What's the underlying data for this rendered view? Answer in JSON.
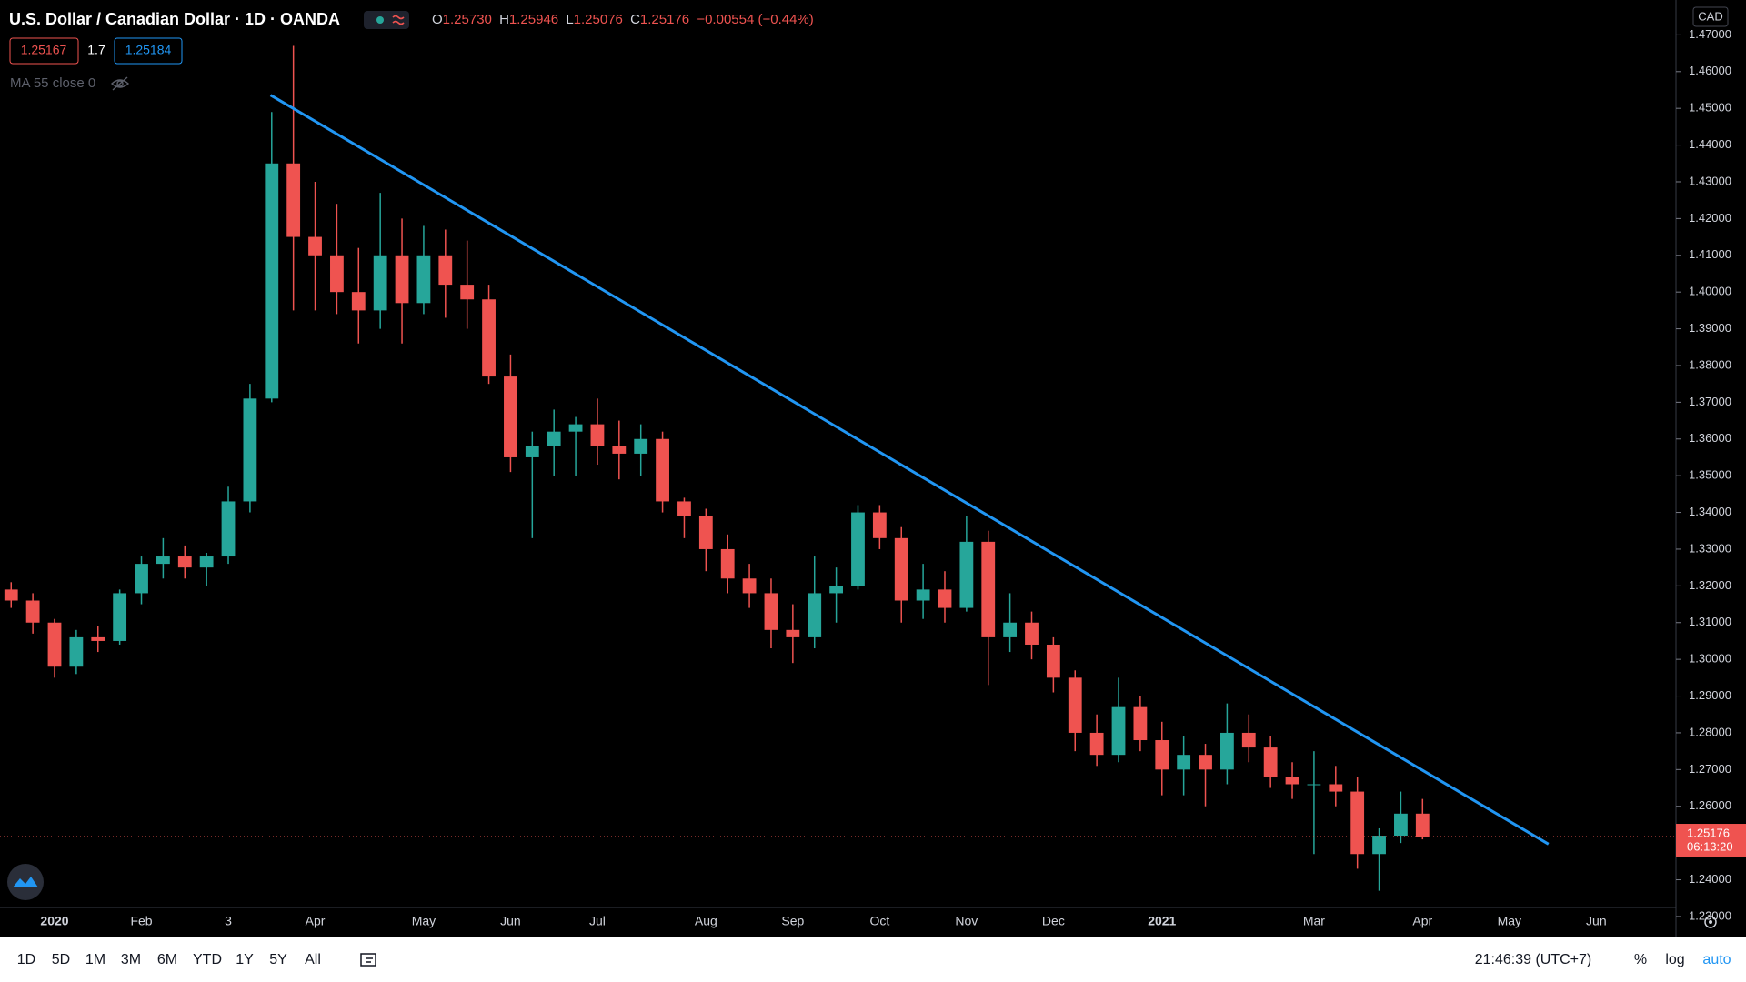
{
  "header": {
    "title": "U.S. Dollar / Canadian Dollar · 1D · OANDA",
    "ohlc": [
      {
        "label": "O",
        "value": "1.25730"
      },
      {
        "label": "H",
        "value": "1.25946"
      },
      {
        "label": "L",
        "value": "1.25076"
      },
      {
        "label": "C",
        "value": "1.25176"
      }
    ],
    "change": "−0.00554 (−0.44%)",
    "bid": "1.25167",
    "spread": "1.7",
    "ask": "1.25184",
    "indicator": "MA 55 close 0"
  },
  "price_scale": {
    "currency": "CAD",
    "countdown": "06:13:20"
  },
  "toolbar": {
    "ranges": [
      "1D",
      "5D",
      "1M",
      "3M",
      "6M",
      "YTD",
      "1Y",
      "5Y",
      "All"
    ],
    "clock": "21:46:39 (UTC+7)",
    "options": [
      "%",
      "log",
      "auto"
    ]
  },
  "chart_data": {
    "type": "candlestick",
    "categories": [
      null,
      null,
      "2020",
      null,
      null,
      null,
      "Feb",
      null,
      null,
      null,
      "3",
      null,
      null,
      null,
      "Apr",
      null,
      null,
      null,
      null,
      "May",
      null,
      null,
      null,
      "Jun",
      null,
      null,
      null,
      "Jul",
      null,
      null,
      null,
      null,
      "Aug",
      null,
      null,
      null,
      "Sep",
      null,
      null,
      null,
      "Oct",
      null,
      null,
      null,
      "Nov",
      null,
      null,
      null,
      "Dec",
      null,
      null,
      null,
      null,
      "2021",
      null,
      null,
      null,
      null,
      null,
      null,
      "Mar",
      null,
      null,
      null,
      null,
      "Apr",
      null,
      null,
      null,
      "May",
      null,
      null,
      null,
      "Jun",
      null,
      null
    ],
    "open": [
      1.319,
      1.316,
      1.31,
      1.298,
      1.306,
      1.305,
      1.318,
      1.326,
      1.328,
      1.325,
      1.328,
      1.343,
      1.371,
      1.435,
      1.415,
      1.41,
      1.4,
      1.395,
      1.41,
      1.397,
      1.41,
      1.402,
      1.398,
      1.377,
      1.355,
      1.358,
      1.362,
      1.364,
      1.358,
      1.356,
      1.36,
      1.343,
      1.339,
      1.33,
      1.322,
      1.318,
      1.308,
      1.306,
      1.318,
      1.32,
      1.34,
      1.333,
      1.316,
      1.319,
      1.314,
      1.332,
      1.306,
      1.31,
      1.304,
      1.295,
      1.28,
      1.274,
      1.287,
      1.278,
      1.27,
      1.274,
      1.27,
      1.28,
      1.276,
      1.268,
      1.266,
      1.266,
      1.264,
      1.247,
      1.252,
      1.258,
      null,
      null,
      null,
      null,
      null,
      null,
      null,
      null,
      null,
      null
    ],
    "high": [
      1.321,
      1.318,
      1.311,
      1.308,
      1.309,
      1.319,
      1.328,
      1.333,
      1.331,
      1.329,
      1.347,
      1.375,
      1.449,
      1.467,
      1.43,
      1.424,
      1.412,
      1.427,
      1.42,
      1.418,
      1.417,
      1.414,
      1.402,
      1.383,
      1.362,
      1.368,
      1.366,
      1.371,
      1.365,
      1.364,
      1.362,
      1.344,
      1.341,
      1.334,
      1.326,
      1.322,
      1.315,
      1.328,
      1.325,
      1.342,
      1.342,
      1.336,
      1.326,
      1.324,
      1.339,
      1.335,
      1.318,
      1.313,
      1.306,
      1.297,
      1.285,
      1.295,
      1.29,
      1.283,
      1.279,
      1.277,
      1.288,
      1.285,
      1.279,
      1.272,
      1.275,
      1.271,
      1.268,
      1.254,
      1.264,
      1.262,
      null,
      null,
      null,
      null,
      null,
      null,
      null,
      null,
      null,
      null
    ],
    "low": [
      1.314,
      1.307,
      1.295,
      1.296,
      1.302,
      1.304,
      1.315,
      1.322,
      1.322,
      1.32,
      1.326,
      1.34,
      1.37,
      1.395,
      1.395,
      1.394,
      1.386,
      1.39,
      1.386,
      1.394,
      1.393,
      1.39,
      1.375,
      1.351,
      1.333,
      1.35,
      1.35,
      1.353,
      1.349,
      1.35,
      1.34,
      1.333,
      1.324,
      1.318,
      1.314,
      1.303,
      1.299,
      1.303,
      1.31,
      1.319,
      1.33,
      1.31,
      1.311,
      1.31,
      1.313,
      1.293,
      1.302,
      1.3,
      1.291,
      1.275,
      1.271,
      1.272,
      1.275,
      1.263,
      1.263,
      1.26,
      1.266,
      1.272,
      1.265,
      1.262,
      1.247,
      1.26,
      1.243,
      1.237,
      1.25,
      1.251,
      null,
      null,
      null,
      null,
      null,
      null,
      null,
      null,
      null,
      null
    ],
    "close": [
      1.316,
      1.31,
      1.298,
      1.306,
      1.305,
      1.318,
      1.326,
      1.328,
      1.325,
      1.328,
      1.343,
      1.371,
      1.435,
      1.415,
      1.41,
      1.4,
      1.395,
      1.41,
      1.397,
      1.41,
      1.402,
      1.398,
      1.377,
      1.355,
      1.358,
      1.362,
      1.364,
      1.358,
      1.356,
      1.36,
      1.343,
      1.339,
      1.33,
      1.322,
      1.318,
      1.308,
      1.306,
      1.318,
      1.32,
      1.34,
      1.333,
      1.316,
      1.319,
      1.314,
      1.332,
      1.306,
      1.31,
      1.304,
      1.295,
      1.28,
      1.274,
      1.287,
      1.278,
      1.27,
      1.274,
      1.27,
      1.28,
      1.276,
      1.268,
      1.266,
      1.266,
      1.264,
      1.247,
      1.252,
      1.258,
      1.25176,
      null,
      null,
      null,
      null,
      null,
      null,
      null,
      null,
      null,
      null
    ],
    "up_color": "#26a69a",
    "down_color": "#ef5350",
    "last_price": 1.25176,
    "trendline": {
      "x": [
        11.95,
        70.8
      ],
      "y": [
        1.4536,
        1.2497
      ],
      "color": "#2196f3"
    },
    "ylim": [
      1.228,
      1.48
    ],
    "yticks": [
      {
        "value": 1.23,
        "label": "1.23000"
      },
      {
        "value": 1.24,
        "label": "1.24000"
      },
      {
        "value": 1.25,
        "label": "1.25000"
      },
      {
        "value": 1.26,
        "label": "1.26000"
      },
      {
        "value": 1.27,
        "label": "1.27000"
      },
      {
        "value": 1.28,
        "label": "1.28000"
      },
      {
        "value": 1.29,
        "label": "1.29000"
      },
      {
        "value": 1.3,
        "label": "1.30000"
      },
      {
        "value": 1.31,
        "label": "1.31000"
      },
      {
        "value": 1.32,
        "label": "1.32000"
      },
      {
        "value": 1.33,
        "label": "1.33000"
      },
      {
        "value": 1.34,
        "label": "1.34000"
      },
      {
        "value": 1.35,
        "label": "1.35000"
      },
      {
        "value": 1.36,
        "label": "1.36000"
      },
      {
        "value": 1.37,
        "label": "1.37000"
      },
      {
        "value": 1.38,
        "label": "1.38000"
      },
      {
        "value": 1.39,
        "label": "1.39000"
      },
      {
        "value": 1.4,
        "label": "1.40000"
      },
      {
        "value": 1.41,
        "label": "1.41000"
      },
      {
        "value": 1.42,
        "label": "1.42000"
      },
      {
        "value": 1.43,
        "label": "1.43000"
      },
      {
        "value": 1.44,
        "label": "1.44000"
      },
      {
        "value": 1.45,
        "label": "1.45000"
      },
      {
        "value": 1.46,
        "label": "1.46000"
      },
      {
        "value": 1.47,
        "label": "1.47000"
      }
    ],
    "grid": false
  }
}
